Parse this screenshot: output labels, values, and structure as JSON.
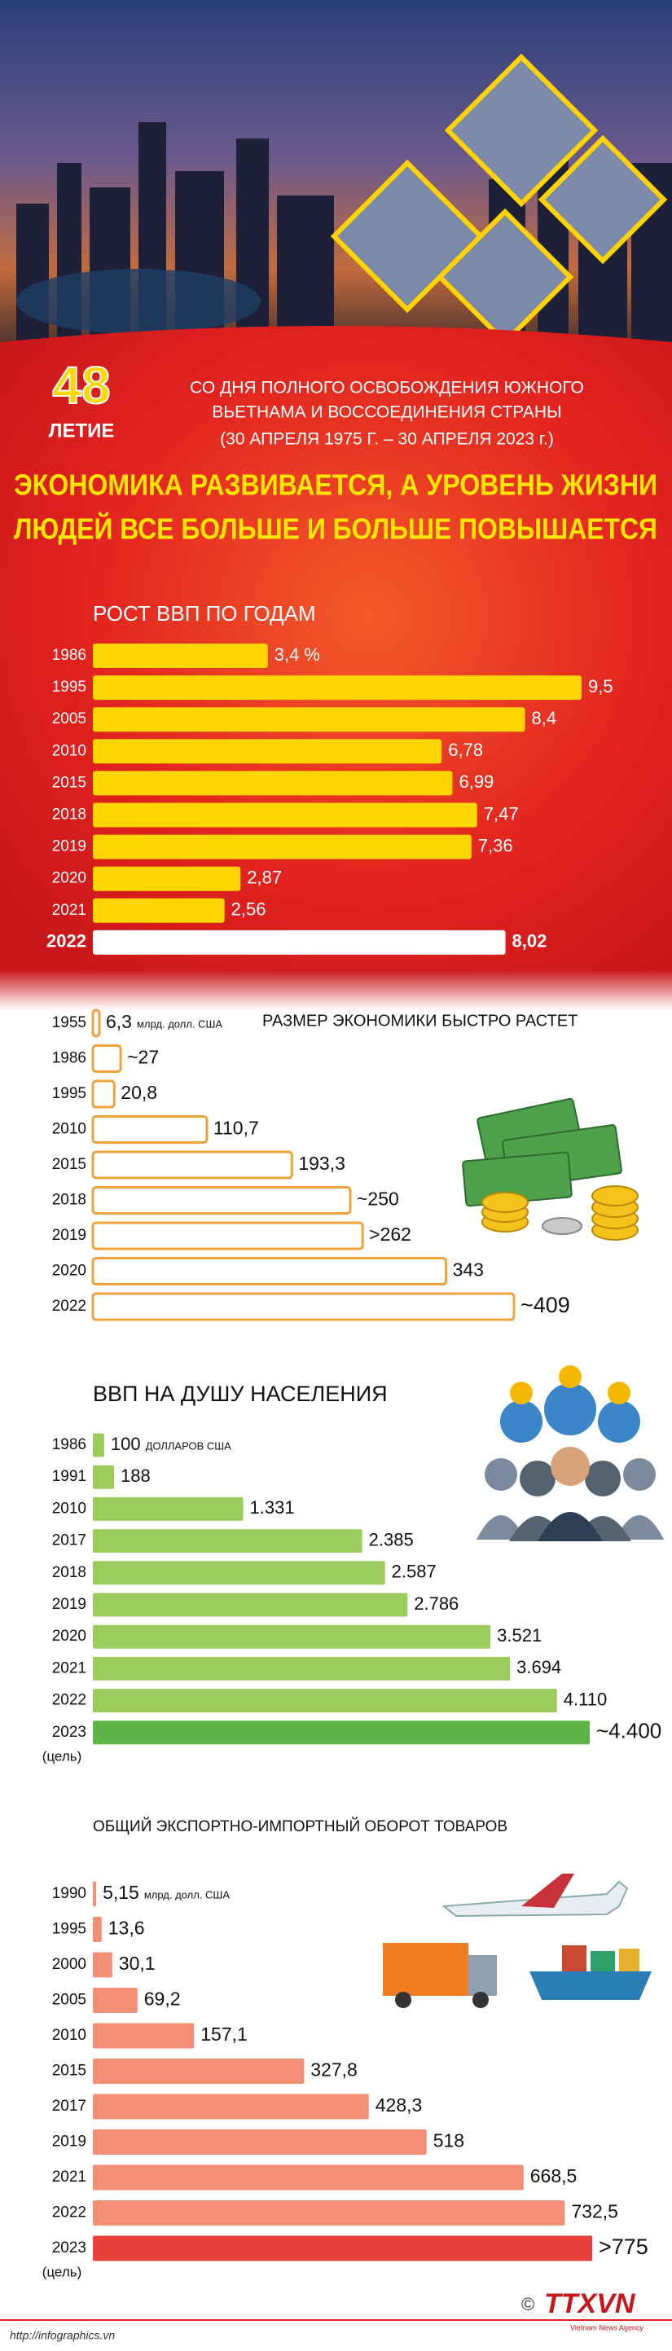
{
  "header": {
    "top_number": "48",
    "top_number_label": "ЛЕТИЕ",
    "subtitle": [
      "СО ДНЯ ПОЛНОГО ОСВОБОЖДЕНИЯ ЮЖНОГО",
      "ВЬЕТНАМА И ВОССОЕДИНЕНИЯ СТРАНЫ",
      "(30 АПРЕЛЯ 1975 Г. – 30 АПРЕЛЯ 2023 г.)"
    ],
    "title": [
      "ЭКОНОМИКА РАЗВИВАЕТСЯ, А УРОВЕНЬ ЖИЗНИ",
      "ЛЮДЕЙ ВСЕ БОЛЬШЕ И БОЛЬШЕ ПОВЫШАЕТСЯ"
    ]
  },
  "chart_data": [
    {
      "type": "bar",
      "orientation": "horizontal",
      "title": "РОСТ ВВП ПО ГОДАМ",
      "categories": [
        "1986",
        "1995",
        "2005",
        "2010",
        "2015",
        "2018",
        "2019",
        "2020",
        "2021",
        "2022"
      ],
      "values": [
        3.4,
        9.5,
        8.4,
        6.78,
        6.99,
        7.47,
        7.36,
        2.87,
        2.56,
        8.02
      ],
      "value_labels": [
        "3,4 %",
        "9,5",
        "8,4",
        "6,78",
        "6,99",
        "7,47",
        "7,36",
        "2,87",
        "2,56",
        "8,02"
      ],
      "colors": [
        "#ffd500",
        "#ffd500",
        "#ffd500",
        "#ffd500",
        "#ffd500",
        "#ffd500",
        "#ffd500",
        "#ffd500",
        "#ffd500",
        "#ffffff"
      ]
    },
    {
      "type": "bar",
      "orientation": "horizontal",
      "title": "РАЗМЕР ЭКОНОМИКИ БЫСТРО РАСТЕТ",
      "unit_note": "млрд. долл. США",
      "categories": [
        "1955",
        "1986",
        "1995",
        "2010",
        "2015",
        "2018",
        "2019",
        "2020",
        "2022"
      ],
      "values": [
        6.3,
        27,
        20.8,
        110.7,
        193.3,
        250,
        262,
        343,
        409
      ],
      "value_labels": [
        "6,3",
        "~27",
        "20,8",
        "110,7",
        "193,3",
        "~250",
        ">262",
        "343",
        "~409"
      ],
      "colors": [
        "#ffffff",
        "#ffffff",
        "#ffffff",
        "#ffffff",
        "#ffffff",
        "#ffffff",
        "#ffffff",
        "#ffffff",
        "#ffffff"
      ],
      "border_color": "#f0a23a"
    },
    {
      "type": "bar",
      "orientation": "horizontal",
      "title": "ВВП НА ДУШУ НАСЕЛЕНИЯ",
      "unit_note": "ДОЛЛАРОВ США",
      "target_note": "(цель)",
      "categories": [
        "1986",
        "1991",
        "2010",
        "2017",
        "2018",
        "2019",
        "2020",
        "2021",
        "2022",
        "2023"
      ],
      "values": [
        100,
        188,
        1331,
        2385,
        2587,
        2786,
        3521,
        3694,
        4110,
        4400
      ],
      "value_labels": [
        "100",
        "188",
        "1.331",
        "2.385",
        "2.587",
        "2.786",
        "3.521",
        "3.694",
        "4.110",
        "~4.400"
      ],
      "colors": [
        "#9ccc5e",
        "#9ccc5e",
        "#9ccc5e",
        "#9ccc5e",
        "#9ccc5e",
        "#9ccc5e",
        "#9ccc5e",
        "#9ccc5e",
        "#9ccc5e",
        "#5db346"
      ]
    },
    {
      "type": "bar",
      "orientation": "horizontal",
      "title": "ОБЩИЙ ЭКСПОРТНО-ИМПОРТНЫЙ ОБОРОТ ТОВАРОВ",
      "unit_note": "млрд. долл. США",
      "target_note": "(цель)",
      "categories": [
        "1990",
        "1995",
        "2000",
        "2005",
        "2010",
        "2015",
        "2017",
        "2019",
        "2021",
        "2022",
        "2023"
      ],
      "values": [
        5.15,
        13.6,
        30.1,
        69.2,
        157.1,
        327.8,
        428.3,
        518,
        668.5,
        732.5,
        775
      ],
      "value_labels": [
        "5,15",
        "13,6",
        "30,1",
        "69,2",
        "157,1",
        "327,8",
        "428,3",
        "518",
        "668,5",
        "732,5",
        ">775"
      ],
      "colors": [
        "#f28f74",
        "#f28f74",
        "#f28f74",
        "#f28f74",
        "#f28f74",
        "#f28f74",
        "#f28f74",
        "#f28f74",
        "#f28f74",
        "#f28f74",
        "#e8403a"
      ]
    }
  ],
  "footer": {
    "url": "http://infographics.vn",
    "copyright": "©",
    "logo": "TTXVN",
    "logo_sub": "Vietnam News Agency"
  }
}
